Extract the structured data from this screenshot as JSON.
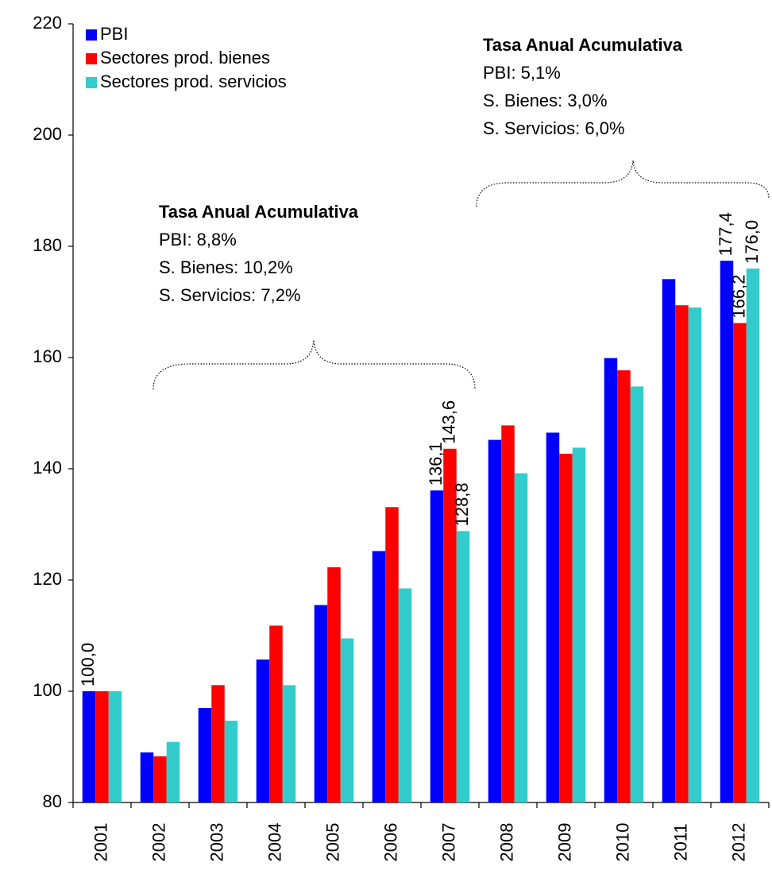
{
  "chart_data": {
    "type": "bar",
    "categories": [
      "2001",
      "2002",
      "2003",
      "2004",
      "2005",
      "2006",
      "2007",
      "2008",
      "2009",
      "2010",
      "2011",
      "2012"
    ],
    "series": [
      {
        "name": "PBI",
        "color": "#0000ff",
        "values": [
          100,
          89.0,
          97.0,
          105.7,
          115.5,
          125.2,
          136.1,
          145.2,
          146.5,
          159.9,
          174.1,
          177.4
        ],
        "value_labels": [
          "100,0",
          null,
          null,
          null,
          null,
          null,
          "136,1",
          null,
          null,
          null,
          null,
          "177,4"
        ]
      },
      {
        "name": "Sectores prod. bienes",
        "color": "#ff0000",
        "values": [
          100,
          88.3,
          101.1,
          111.8,
          122.3,
          133.1,
          143.6,
          147.8,
          142.7,
          157.7,
          169.4,
          166.2
        ],
        "value_labels": [
          null,
          null,
          null,
          null,
          null,
          null,
          "143,6",
          null,
          null,
          null,
          null,
          "166,2"
        ]
      },
      {
        "name": "Sectores prod. servicios",
        "color": "#33cccc",
        "values": [
          100,
          90.9,
          94.7,
          101.1,
          109.5,
          118.5,
          128.8,
          139.2,
          143.8,
          154.8,
          169.0,
          176.0
        ],
        "value_labels": [
          null,
          null,
          null,
          null,
          null,
          null,
          "128,8",
          null,
          null,
          null,
          null,
          "176,0"
        ]
      }
    ],
    "ylim": [
      80,
      220
    ],
    "yticks": [
      80,
      100,
      120,
      140,
      160,
      180,
      200,
      220
    ],
    "grid": false,
    "legend": "top-left",
    "annotations": [
      {
        "title": "Tasa Anual Acumulativa",
        "lines": [
          "PBI: 8,8%",
          "S. Bienes: 10,2%",
          "S. Servicios: 7,2%"
        ]
      },
      {
        "title": "Tasa Anual Acumulativa",
        "lines": [
          "PBI: 5,1%",
          "S. Bienes: 3,0%",
          "S. Servicios: 6,0%"
        ]
      }
    ]
  }
}
